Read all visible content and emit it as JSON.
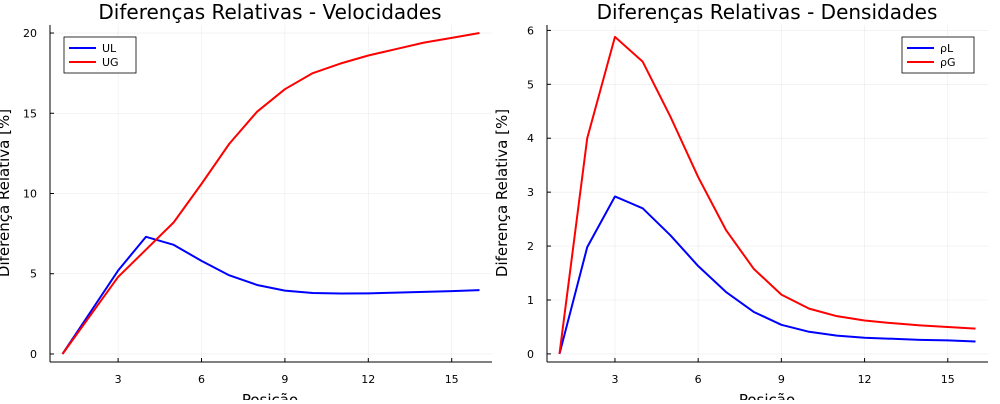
{
  "chart_data": [
    {
      "type": "line",
      "title": "Diferenças Relativas - Velocidades",
      "xlabel": "Posição",
      "ylabel": "Diferença Relativa [%]",
      "xlim": [
        0.55,
        16.45
      ],
      "ylim": [
        -0.5,
        20.5
      ],
      "xticks": [
        3,
        6,
        9,
        12,
        15
      ],
      "yticks": [
        0,
        5,
        10,
        15,
        20
      ],
      "grid": true,
      "legend_position": "top-left",
      "series": [
        {
          "name": "UL",
          "color": "#0000ff",
          "x": [
            1,
            2,
            3,
            4,
            5,
            6,
            7,
            8,
            9,
            10,
            11,
            12,
            13,
            14,
            15,
            16
          ],
          "values": [
            0.0,
            2.6,
            5.2,
            7.3,
            6.8,
            5.8,
            4.9,
            4.3,
            3.95,
            3.8,
            3.77,
            3.78,
            3.82,
            3.87,
            3.92,
            3.98
          ]
        },
        {
          "name": "UG",
          "color": "#ff0000",
          "x": [
            1,
            2,
            3,
            4,
            5,
            6,
            7,
            8,
            9,
            10,
            11,
            12,
            13,
            14,
            15,
            16
          ],
          "values": [
            0.0,
            2.4,
            4.8,
            6.5,
            8.2,
            10.6,
            13.1,
            15.1,
            16.5,
            17.5,
            18.1,
            18.6,
            19.0,
            19.4,
            19.7,
            20.0
          ]
        }
      ]
    },
    {
      "type": "line",
      "title": "Diferenças Relativas - Densidades",
      "xlabel": "Posição",
      "ylabel": "Diferença Relativa [%]",
      "xlim": [
        0.55,
        16.45
      ],
      "ylim": [
        -0.15,
        6.1
      ],
      "xticks": [
        3,
        6,
        9,
        12,
        15
      ],
      "yticks": [
        0,
        1,
        2,
        3,
        4,
        5,
        6
      ],
      "grid": true,
      "legend_position": "top-right",
      "series": [
        {
          "name": "ρL",
          "color": "#0000ff",
          "x": [
            1,
            2,
            3,
            4,
            5,
            6,
            7,
            8,
            9,
            10,
            11,
            12,
            13,
            14,
            15,
            16
          ],
          "values": [
            0.0,
            1.98,
            2.92,
            2.7,
            2.2,
            1.63,
            1.15,
            0.78,
            0.54,
            0.41,
            0.34,
            0.3,
            0.28,
            0.26,
            0.25,
            0.23
          ]
        },
        {
          "name": "ρG",
          "color": "#ff0000",
          "x": [
            1,
            2,
            3,
            4,
            5,
            6,
            7,
            8,
            9,
            10,
            11,
            12,
            13,
            14,
            15,
            16
          ],
          "values": [
            0.0,
            4.0,
            5.88,
            5.42,
            4.4,
            3.28,
            2.3,
            1.58,
            1.1,
            0.84,
            0.7,
            0.62,
            0.57,
            0.53,
            0.5,
            0.47
          ]
        }
      ]
    }
  ]
}
